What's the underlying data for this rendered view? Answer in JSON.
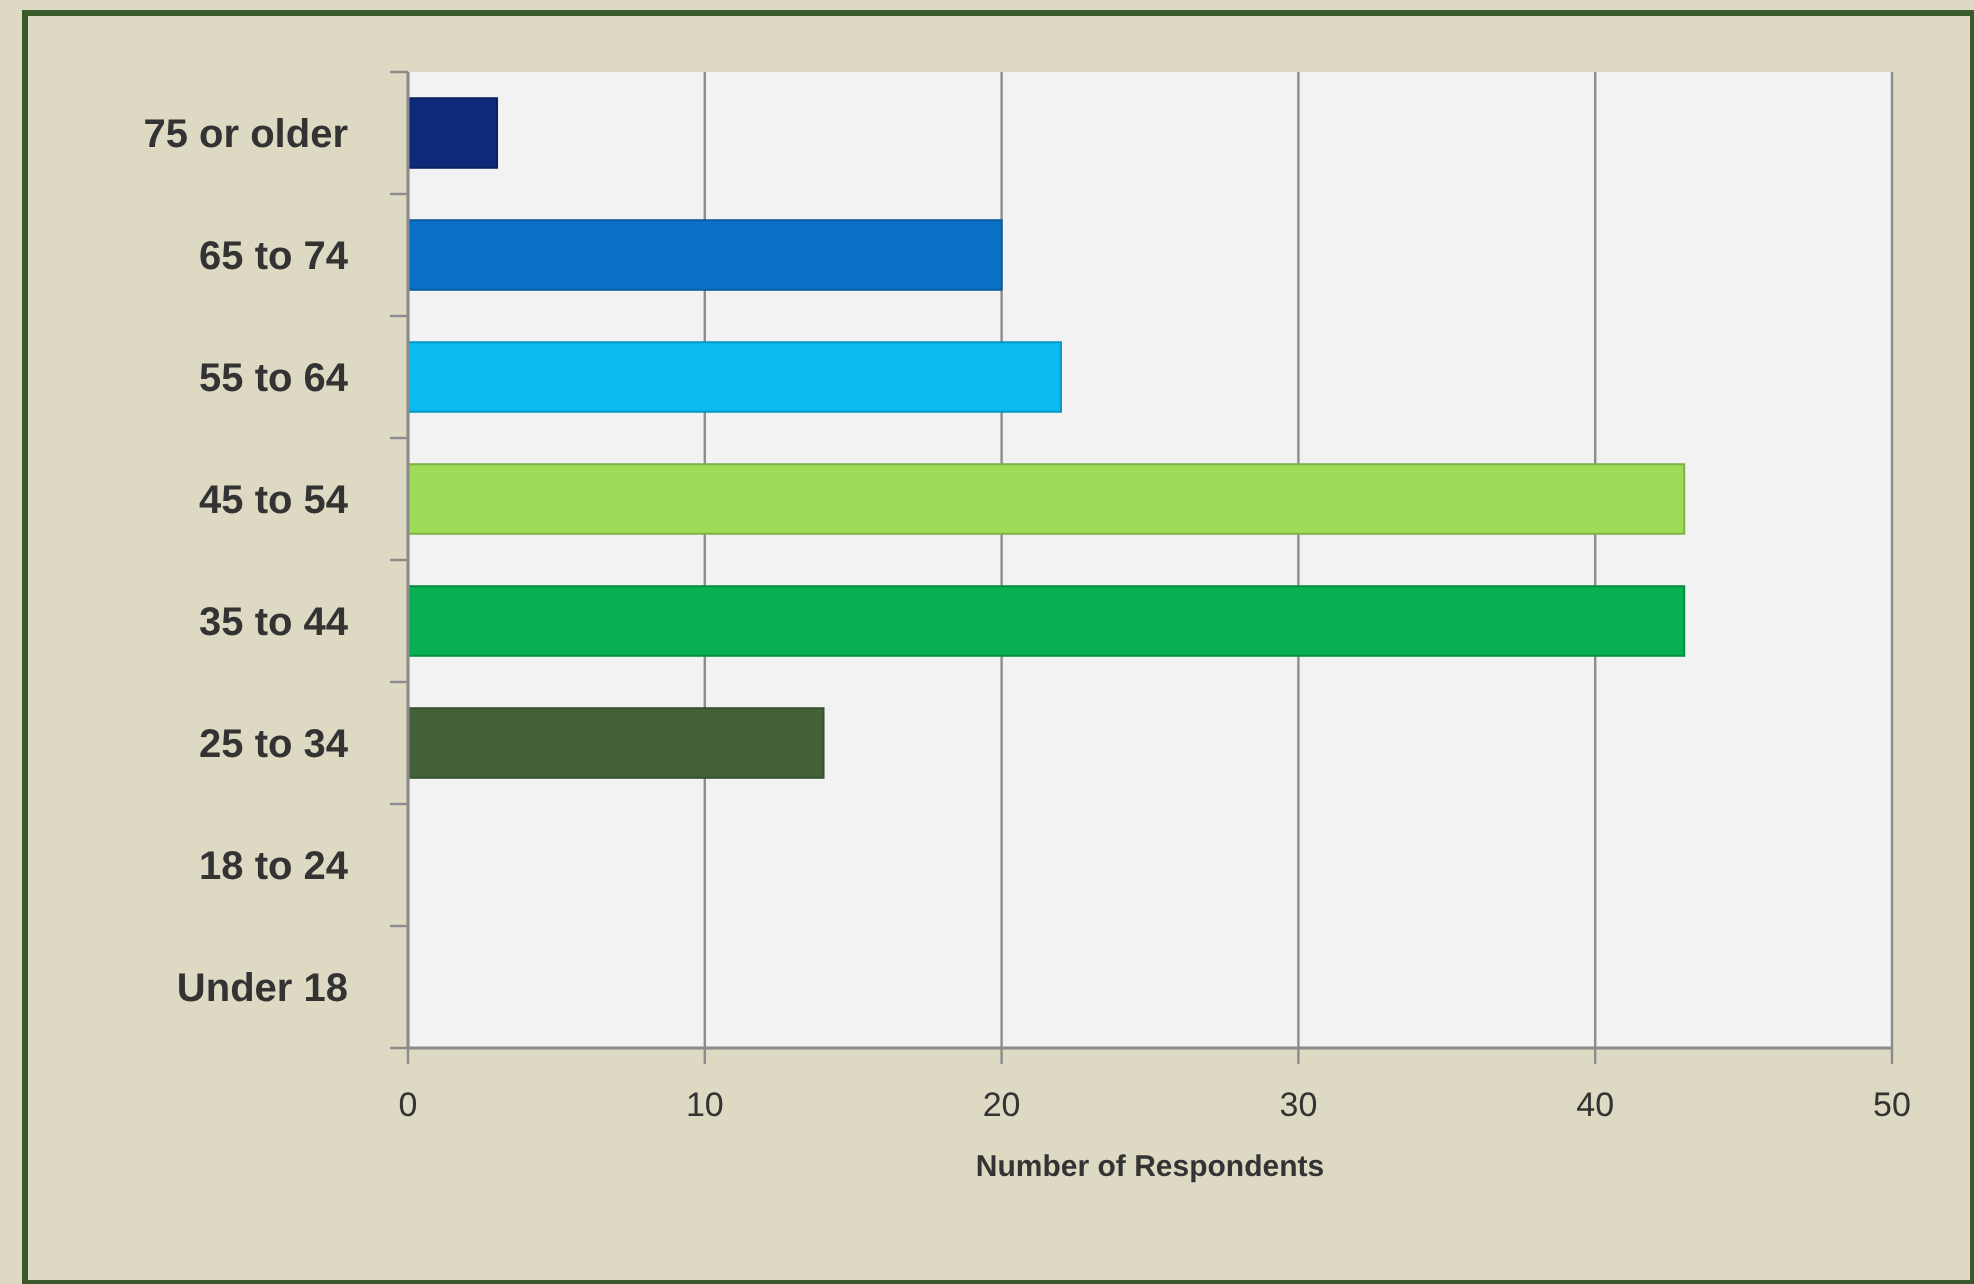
{
  "chart_data": {
    "type": "bar",
    "orientation": "horizontal",
    "categories": [
      "75 or older",
      "65 to 74",
      "55 to 64",
      "45 to 54",
      "35 to 44",
      "25 to 34",
      "18 to 24",
      "Under 18"
    ],
    "values": [
      3,
      20,
      22,
      43,
      43,
      14,
      0,
      0
    ],
    "colors": [
      "#0c2a78",
      "#0a72c6",
      "#0abaf0",
      "#9ddb58",
      "#08b052",
      "#44623a",
      "#44623a",
      "#44623a"
    ],
    "xlabel": "Number of Respondents",
    "xlim": [
      0,
      50
    ],
    "xticks": [
      0,
      10,
      20,
      30,
      40,
      50
    ],
    "grid": "x"
  }
}
